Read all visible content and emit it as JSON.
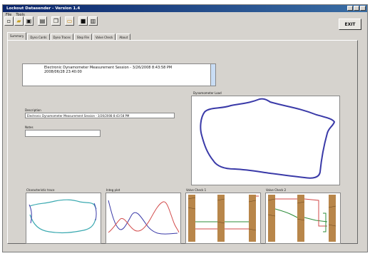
{
  "window": {
    "title": "Lockout Datasender - Version 1.4"
  },
  "menu": [
    "File",
    "Tools"
  ],
  "toolbar": {
    "icons": [
      "new-icon",
      "open-icon",
      "save-icon",
      "print-icon",
      "copy-icon",
      "folder-icon",
      "disk-icon",
      "report-icon"
    ]
  },
  "exit_label": "EXIT",
  "tabs": [
    "Summary",
    "Dyno Cards",
    "Dyno Traces",
    "Step File",
    "Valve Check",
    "About"
  ],
  "active_tab": 0,
  "info": {
    "line1": "Electronic Dynamometer Measurement Session - 3/26/2008 8:43:58 PM",
    "line2": "2008/06/28 23:40:00"
  },
  "description": {
    "label": "Description",
    "value": "Electronic Dynamometer Measurement Session - 3/26/2008 8:43:58 PM"
  },
  "notes": {
    "label": "Notes",
    "value": ""
  },
  "plots": {
    "main": {
      "label": "Dynamometer Load"
    },
    "p1": {
      "label": "Characteristic trace"
    },
    "p2": {
      "label": "Integ plot"
    },
    "p3": {
      "label": "Valve Check 1"
    },
    "p4": {
      "label": "Valve Check 2"
    }
  },
  "colors": {
    "card": "#3a3aa8",
    "teal": "#3aa9b0",
    "red": "#d24a4a",
    "green": "#2e8c3a",
    "wood": "#b8864a"
  }
}
